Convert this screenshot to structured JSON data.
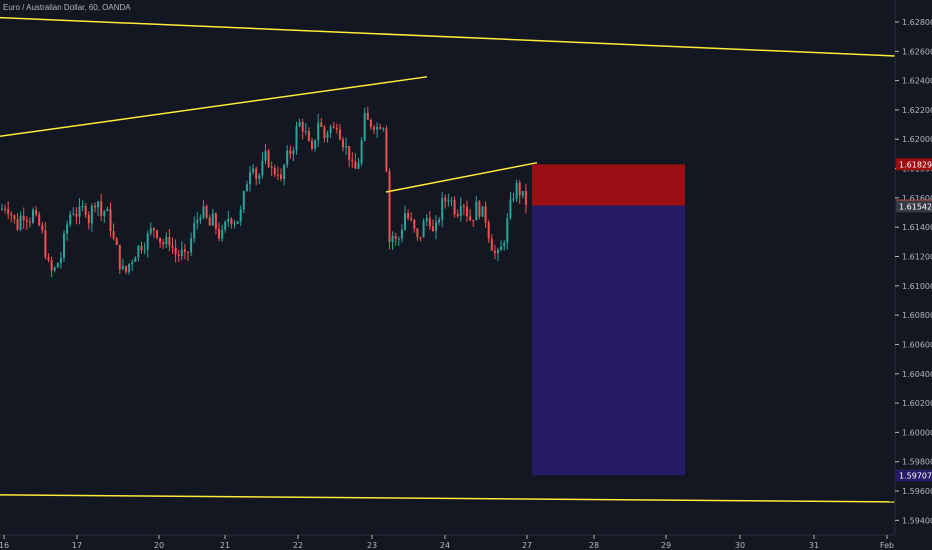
{
  "title": "Euro / Australian Dollar, 60, OANDA",
  "colors": {
    "background": "#131722",
    "up": "#26a69a",
    "down": "#ef5350",
    "trendline": "#ffeb3b",
    "stop_zone": "#9b0e13",
    "target_zone": "#251b66",
    "axis_text": "#b2b5be"
  },
  "chart_data": {
    "type": "candlestick",
    "instrument": "Euro / Australian Dollar",
    "timeframe": "60",
    "source": "OANDA",
    "ylim": [
      1.593,
      1.6295
    ],
    "yticks": [
      "1.62800",
      "1.62600",
      "1.62400",
      "1.62200",
      "1.62000",
      "1.61800",
      "1.61600",
      "1.61400",
      "1.61200",
      "1.61000",
      "1.60800",
      "1.60600",
      "1.60400",
      "1.60200",
      "1.60000",
      "1.59800",
      "1.59600",
      "1.59400"
    ],
    "xticks": [
      "16",
      "17",
      "20",
      "21",
      "22",
      "23",
      "24",
      "27",
      "28",
      "29",
      "30",
      "31",
      "Feb"
    ],
    "price_labels": [
      {
        "text": "1.61829",
        "value": 1.61829,
        "color": "#9b0e13"
      },
      {
        "text": "1.61547",
        "value": 1.61547,
        "color": "#ef5350"
      },
      {
        "text": "1.61542",
        "value": 1.61542,
        "color": "#363a45"
      },
      {
        "text": "1.59707",
        "value": 1.59707,
        "color": "#251b66"
      }
    ],
    "position": {
      "type": "short",
      "entry": 1.61547,
      "stop": 1.61829,
      "target": 1.59707
    },
    "close_path": [
      [
        0,
        1.6152
      ],
      [
        4,
        1.6155
      ],
      [
        8,
        1.6153
      ],
      [
        12,
        1.6146
      ],
      [
        16,
        1.614
      ],
      [
        20,
        1.6148
      ],
      [
        24,
        1.615
      ],
      [
        28,
        1.6145
      ],
      [
        32,
        1.615
      ],
      [
        36,
        1.6142
      ],
      [
        40,
        1.614
      ],
      [
        44,
        1.6125
      ],
      [
        48,
        1.6112
      ],
      [
        52,
        1.6108
      ],
      [
        56,
        1.6115
      ],
      [
        60,
        1.612
      ],
      [
        64,
        1.6135
      ],
      [
        68,
        1.6148
      ],
      [
        72,
        1.6152
      ],
      [
        76,
        1.6149
      ],
      [
        80,
        1.615
      ],
      [
        84,
        1.6155
      ],
      [
        88,
        1.6145
      ],
      [
        92,
        1.6155
      ],
      [
        96,
        1.6162
      ],
      [
        100,
        1.6148
      ],
      [
        104,
        1.6152
      ],
      [
        108,
        1.6146
      ],
      [
        112,
        1.6132
      ],
      [
        116,
        1.6124
      ],
      [
        120,
        1.6112
      ],
      [
        124,
        1.6108
      ],
      [
        128,
        1.6115
      ],
      [
        132,
        1.612
      ],
      [
        136,
        1.6125
      ],
      [
        140,
        1.6128
      ],
      [
        144,
        1.613
      ],
      [
        148,
        1.6135
      ],
      [
        152,
        1.614
      ],
      [
        156,
        1.6137
      ],
      [
        160,
        1.613
      ],
      [
        164,
        1.6128
      ],
      [
        168,
        1.6132
      ],
      [
        172,
        1.6125
      ],
      [
        176,
        1.612
      ],
      [
        180,
        1.6123
      ],
      [
        184,
        1.6118
      ],
      [
        188,
        1.6125
      ],
      [
        192,
        1.6138
      ],
      [
        196,
        1.6145
      ],
      [
        200,
        1.6152
      ],
      [
        204,
        1.6148
      ],
      [
        208,
        1.614
      ],
      [
        212,
        1.6145
      ],
      [
        216,
        1.6138
      ],
      [
        220,
        1.6132
      ],
      [
        224,
        1.614
      ],
      [
        228,
        1.6148
      ],
      [
        232,
        1.6145
      ],
      [
        236,
        1.6145
      ],
      [
        240,
        1.615
      ],
      [
        244,
        1.6165
      ],
      [
        248,
        1.618
      ],
      [
        252,
        1.6185
      ],
      [
        256,
        1.6172
      ],
      [
        260,
        1.6178
      ],
      [
        264,
        1.6188
      ],
      [
        268,
        1.6185
      ],
      [
        272,
        1.6175
      ],
      [
        276,
        1.6182
      ],
      [
        280,
        1.617
      ],
      [
        284,
        1.6185
      ],
      [
        288,
        1.619
      ],
      [
        292,
        1.6195
      ],
      [
        296,
        1.6208
      ],
      [
        300,
        1.6212
      ],
      [
        304,
        1.6205
      ],
      [
        308,
        1.6195
      ],
      [
        312,
        1.6188
      ],
      [
        316,
        1.6215
      ],
      [
        320,
        1.6208
      ],
      [
        324,
        1.62
      ],
      [
        328,
        1.621
      ],
      [
        332,
        1.6205
      ],
      [
        336,
        1.6212
      ],
      [
        340,
        1.6202
      ],
      [
        344,
        1.6195
      ],
      [
        348,
        1.619
      ],
      [
        352,
        1.6178
      ],
      [
        356,
        1.618
      ],
      [
        360,
        1.6195
      ],
      [
        364,
        1.6215
      ],
      [
        368,
        1.621
      ],
      [
        372,
        1.6212
      ],
      [
        376,
        1.6208
      ],
      [
        380,
        1.6212
      ],
      [
        384,
        1.621
      ],
      [
        388,
        1.613
      ],
      [
        392,
        1.6135
      ],
      [
        396,
        1.6128
      ],
      [
        400,
        1.6138
      ],
      [
        404,
        1.615
      ],
      [
        408,
        1.6145
      ],
      [
        412,
        1.614
      ],
      [
        416,
        1.613
      ],
      [
        420,
        1.6136
      ],
      [
        424,
        1.6145
      ],
      [
        428,
        1.6148
      ],
      [
        432,
        1.6135
      ],
      [
        436,
        1.614
      ],
      [
        440,
        1.6155
      ],
      [
        444,
        1.6158
      ],
      [
        448,
        1.6162
      ],
      [
        452,
        1.6155
      ],
      [
        456,
        1.615
      ],
      [
        460,
        1.616
      ],
      [
        464,
        1.6155
      ],
      [
        468,
        1.6145
      ],
      [
        472,
        1.6148
      ],
      [
        476,
        1.6155
      ],
      [
        480,
        1.615
      ],
      [
        484,
        1.6148
      ],
      [
        488,
        1.6135
      ],
      [
        492,
        1.6125
      ],
      [
        496,
        1.6118
      ],
      [
        500,
        1.6125
      ],
      [
        504,
        1.6135
      ],
      [
        508,
        1.615
      ],
      [
        512,
        1.6162
      ],
      [
        516,
        1.6168
      ],
      [
        520,
        1.6162
      ],
      [
        524,
        1.6158
      ],
      [
        527,
        1.6155
      ]
    ]
  }
}
